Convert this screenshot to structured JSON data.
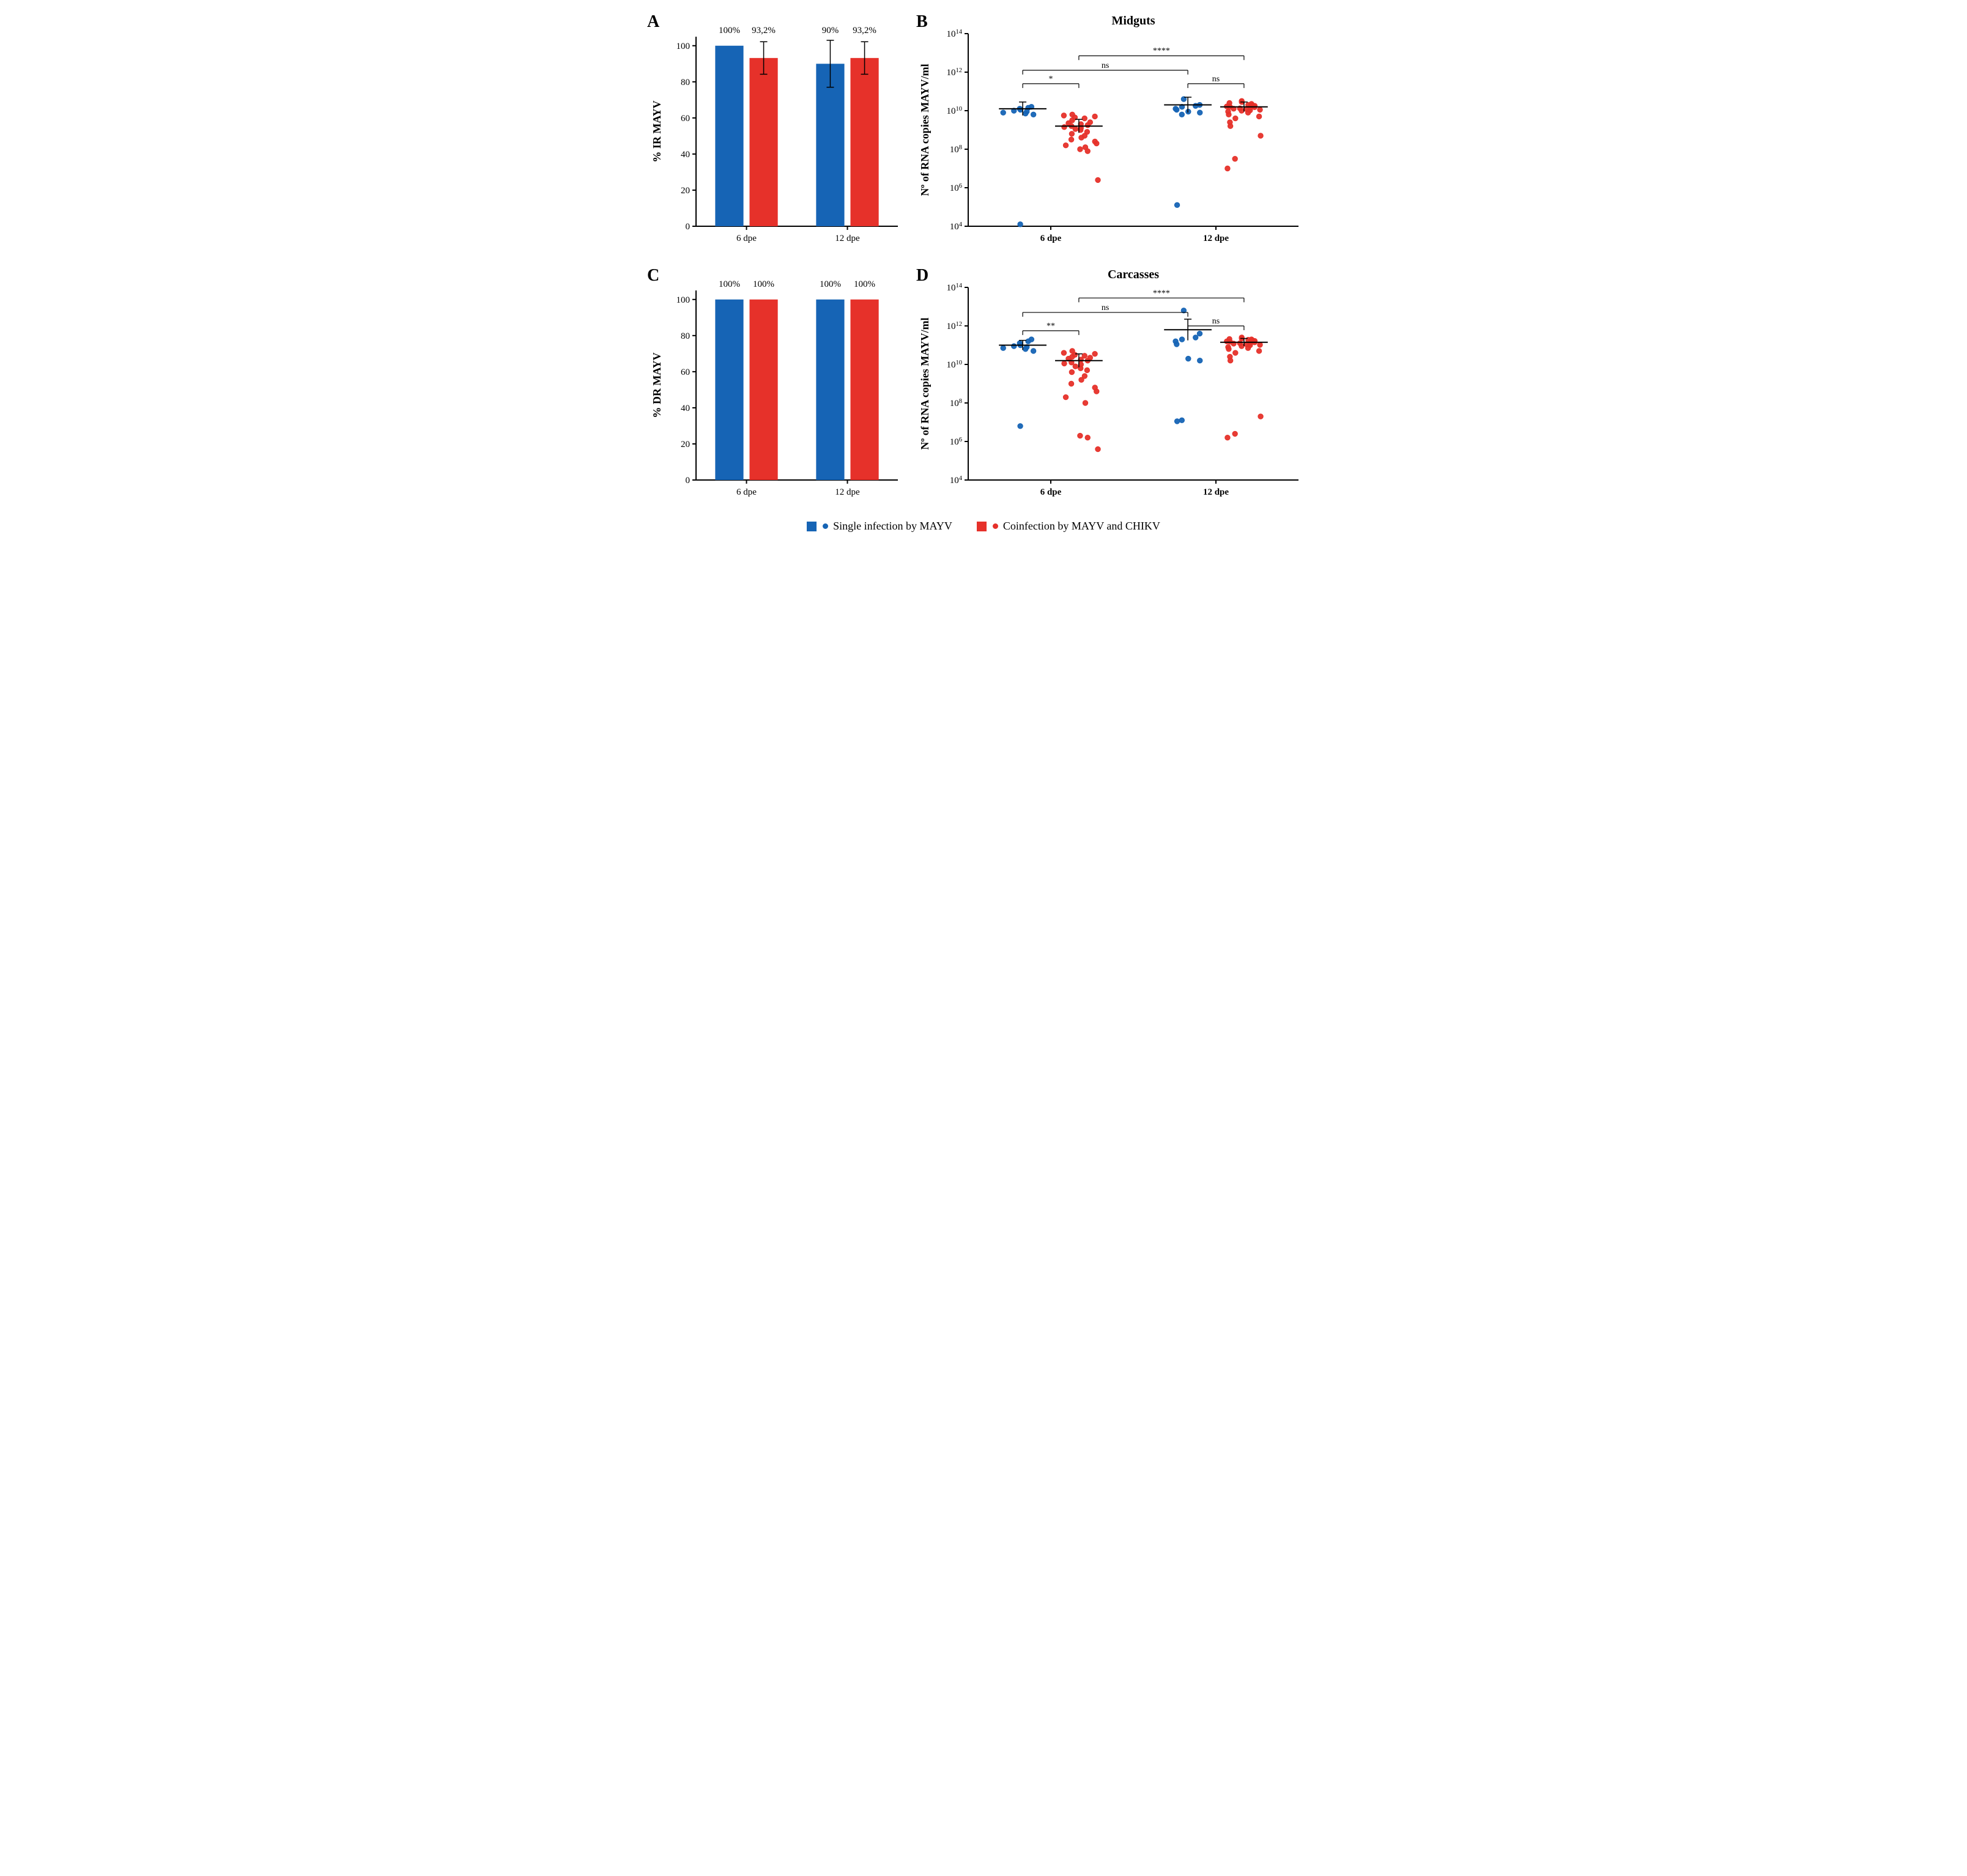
{
  "colors": {
    "single": "#1664b5",
    "coinfection": "#e6312a",
    "axis": "#000000",
    "background": "#ffffff"
  },
  "legend": {
    "single": "Single infection by MAYV",
    "coinfection": "Coinfection by MAYV and CHIKV"
  },
  "panelA": {
    "letter": "A",
    "ylabel": "% IR MAYV",
    "ylim": [
      0,
      105
    ],
    "ytick_step": 20,
    "categories": [
      "6 dpe",
      "12 dpe"
    ],
    "groups": [
      {
        "label": "100%",
        "value": 100,
        "err": 0,
        "color_key": "single"
      },
      {
        "label": "93,2%",
        "value": 93.2,
        "err": 9,
        "color_key": "coinfection"
      },
      {
        "label": "90%",
        "value": 90,
        "err": 13,
        "color_key": "single"
      },
      {
        "label": "93,2%",
        "value": 93.2,
        "err": 9,
        "color_key": "coinfection"
      }
    ]
  },
  "panelB": {
    "letter": "B",
    "title": "Midguts",
    "ylabel": "Nº of RNA copies MAYV/ml",
    "ylog_range": [
      4,
      14
    ],
    "categories": [
      "6 dpe",
      "12 dpe"
    ],
    "clusters": [
      {
        "mean_log": 10.1,
        "sem_log": 0.35,
        "color_key": "single",
        "points_log": [
          10.2,
          10.15,
          10.1,
          10.05,
          10.0,
          9.95,
          9.9,
          9.85,
          9.8,
          4.1
        ]
      },
      {
        "mean_log": 9.2,
        "sem_log": 0.35,
        "color_key": "coinfection",
        "points_log": [
          9.8,
          9.75,
          9.7,
          9.65,
          9.6,
          9.5,
          9.4,
          9.35,
          9.3,
          9.25,
          9.2,
          9.15,
          9.1,
          9.05,
          9.0,
          8.9,
          8.8,
          8.7,
          8.6,
          8.5,
          8.4,
          8.3,
          8.2,
          8.1,
          8.0,
          7.9,
          6.4
        ]
      },
      {
        "mean_log": 10.3,
        "sem_log": 0.4,
        "color_key": "single",
        "points_log": [
          10.6,
          10.3,
          10.25,
          10.2,
          10.1,
          10.05,
          9.95,
          9.9,
          9.8,
          5.1
        ]
      },
      {
        "mean_log": 10.2,
        "sem_log": 0.25,
        "color_key": "coinfection",
        "points_log": [
          10.5,
          10.45,
          10.4,
          10.35,
          10.3,
          10.28,
          10.25,
          10.22,
          10.2,
          10.18,
          10.15,
          10.12,
          10.1,
          10.08,
          10.05,
          10.02,
          10.0,
          9.95,
          9.9,
          9.8,
          9.7,
          9.6,
          9.4,
          9.2,
          8.7,
          7.5,
          7.0
        ]
      }
    ],
    "sig": [
      {
        "from": 0,
        "to": 1,
        "label": "*",
        "y_log": 11.4
      },
      {
        "from": 0,
        "to": 2,
        "label": "ns",
        "y_log": 12.1
      },
      {
        "from": 2,
        "to": 3,
        "label": "ns",
        "y_log": 11.4
      },
      {
        "from": 1,
        "to": 3,
        "label": "****",
        "y_log": 12.85
      }
    ]
  },
  "panelC": {
    "letter": "C",
    "ylabel": "% DR MAYV",
    "ylim": [
      0,
      105
    ],
    "ytick_step": 20,
    "categories": [
      "6 dpe",
      "12 dpe"
    ],
    "groups": [
      {
        "label": "100%",
        "value": 100,
        "err": 0,
        "color_key": "single"
      },
      {
        "label": "100%",
        "value": 100,
        "err": 0,
        "color_key": "coinfection"
      },
      {
        "label": "100%",
        "value": 100,
        "err": 0,
        "color_key": "single"
      },
      {
        "label": "100%",
        "value": 100,
        "err": 0,
        "color_key": "coinfection"
      }
    ]
  },
  "panelD": {
    "letter": "D",
    "title": "Carcasses",
    "ylabel": "Nº of RNA copies MAYV/ml",
    "ylog_range": [
      4,
      14
    ],
    "categories": [
      "6 dpe",
      "12 dpe"
    ],
    "clusters": [
      {
        "mean_log": 11.0,
        "sem_log": 0.25,
        "color_key": "single",
        "points_log": [
          11.3,
          11.2,
          11.1,
          11.0,
          10.95,
          10.9,
          10.85,
          10.8,
          10.7,
          6.8
        ]
      },
      {
        "mean_log": 10.2,
        "sem_log": 0.35,
        "color_key": "coinfection",
        "points_log": [
          10.7,
          10.6,
          10.55,
          10.5,
          10.45,
          10.4,
          10.35,
          10.3,
          10.25,
          10.2,
          10.1,
          10.05,
          10.0,
          9.9,
          9.8,
          9.7,
          9.6,
          9.4,
          9.2,
          9.0,
          8.8,
          8.6,
          8.3,
          8.0,
          6.3,
          6.2,
          5.6
        ]
      },
      {
        "mean_log": 11.8,
        "sem_log": 0.55,
        "color_key": "single",
        "points_log": [
          12.8,
          11.6,
          11.4,
          11.3,
          11.2,
          11.05,
          10.3,
          10.2,
          7.1,
          7.05
        ]
      },
      {
        "mean_log": 11.15,
        "sem_log": 0.2,
        "color_key": "coinfection",
        "points_log": [
          11.4,
          11.35,
          11.32,
          11.3,
          11.28,
          11.25,
          11.22,
          11.2,
          11.18,
          11.15,
          11.12,
          11.1,
          11.08,
          11.05,
          11.02,
          11.0,
          10.95,
          10.9,
          10.85,
          10.8,
          10.7,
          10.6,
          10.4,
          10.2,
          7.3,
          6.4,
          6.2
        ]
      }
    ],
    "sig": [
      {
        "from": 0,
        "to": 1,
        "label": "**",
        "y_log": 11.75
      },
      {
        "from": 0,
        "to": 2,
        "label": "ns",
        "y_log": 12.7
      },
      {
        "from": 2,
        "to": 3,
        "label": "ns",
        "y_log": 12.0
      },
      {
        "from": 1,
        "to": 3,
        "label": "****",
        "y_log": 13.45
      }
    ]
  },
  "layout": {
    "bar_panel_w": 420,
    "bar_panel_h": 400,
    "scatter_panel_w": 640,
    "scatter_panel_h": 400,
    "title_fontsize": 20,
    "label_fontsize": 18,
    "tick_fontsize": 15,
    "panel_letter_fontsize": 28
  }
}
